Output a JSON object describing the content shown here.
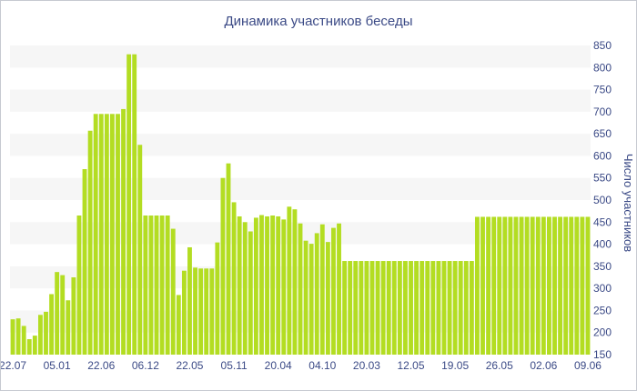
{
  "chart_data": {
    "type": "bar",
    "title": "Динамика участников беседы",
    "xlabel": "",
    "ylabel": "Число участников",
    "ylim": [
      150,
      850
    ],
    "yticks": [
      150,
      200,
      250,
      300,
      350,
      400,
      450,
      500,
      550,
      600,
      650,
      700,
      750,
      800,
      850
    ],
    "grid": "horizontal alternating bands",
    "bar_color": "#b3dd22",
    "text_color": "#3b4a86",
    "band_color": "#f6f6f6",
    "x_tick_labels": [
      "22.07",
      "05.01",
      "22.06",
      "06.12",
      "22.05",
      "05.11",
      "20.04",
      "04.10",
      "20.03",
      "12.05",
      "19.05",
      "26.05",
      "02.06",
      "09.06"
    ],
    "x_tick_bar_index": [
      0,
      8,
      16,
      24,
      32,
      40,
      48,
      56,
      64,
      72,
      80,
      88,
      96,
      104
    ],
    "values": [
      230,
      232,
      215,
      185,
      193,
      240,
      247,
      287,
      337,
      330,
      273,
      325,
      465,
      570,
      657,
      695,
      695,
      695,
      695,
      695,
      706,
      830,
      830,
      625,
      465,
      465,
      465,
      465,
      465,
      435,
      285,
      340,
      393,
      347,
      345,
      345,
      345,
      404,
      550,
      583,
      495,
      463,
      450,
      429,
      460,
      466,
      463,
      465,
      463,
      456,
      485,
      479,
      447,
      408,
      401,
      425,
      445,
      405,
      437,
      447,
      362,
      362,
      362,
      362,
      362,
      362,
      362,
      362,
      362,
      362,
      362,
      362,
      362,
      362,
      362,
      362,
      362,
      362,
      362,
      362,
      362,
      362,
      362,
      362,
      462,
      462,
      462,
      462,
      462,
      462,
      462,
      462,
      462,
      462,
      462,
      462,
      462,
      462,
      462,
      462,
      462,
      462,
      462,
      462,
      462
    ]
  }
}
